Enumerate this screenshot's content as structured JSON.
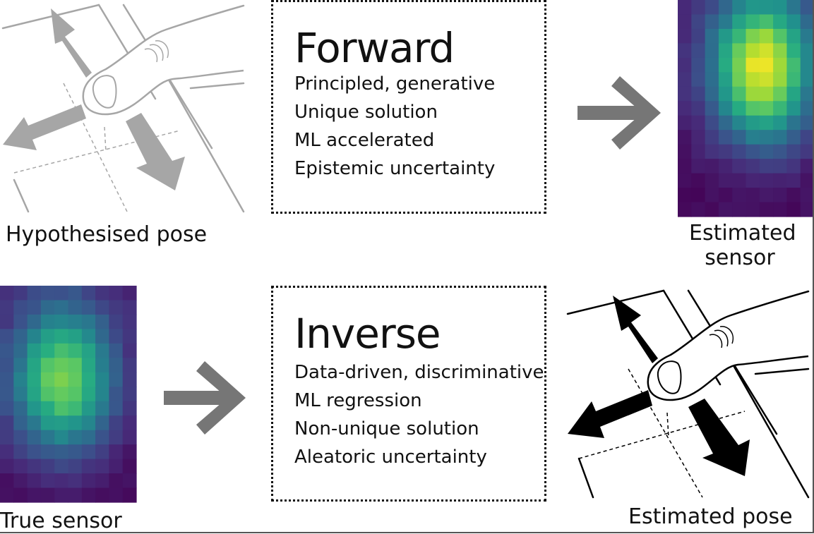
{
  "forward": {
    "title": "Forward",
    "points": [
      "Principled, generative",
      "Unique solution",
      "ML accelerated",
      "Epistemic uncertainty"
    ]
  },
  "inverse": {
    "title": "Inverse",
    "points": [
      "Data-driven, discriminative",
      "ML regression",
      "Non-unique solution",
      "Aleatoric uncertainty"
    ]
  },
  "labels": {
    "hypothesised_pose": "Hypothesised pose",
    "estimated_sensor_line1": "Estimated",
    "estimated_sensor_line2": "sensor",
    "true_sensor": "True sensor",
    "estimated_pose": "Estimated pose"
  },
  "colors": {
    "arrow_grey": "#767676",
    "pose_grey": "#a6a6a6",
    "pose_black": "#000000",
    "colormap": "viridis"
  },
  "heatmaps": {
    "estimated_sensor": {
      "cols": 10,
      "rows": 15,
      "peak_col": 6.2,
      "peak_row": 4.7,
      "peak_level": 1.0
    },
    "true_sensor": {
      "cols": 10,
      "rows": 15,
      "peak_col": 4.6,
      "peak_row": 6.5,
      "peak_level": 0.82
    }
  }
}
